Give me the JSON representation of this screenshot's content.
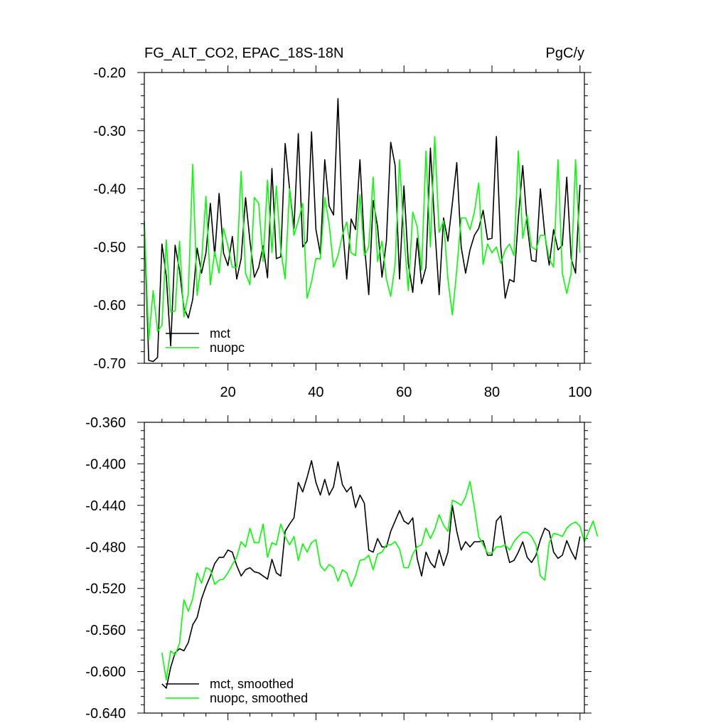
{
  "chart_data": [
    {
      "type": "line",
      "title": "FG_ALT_CO2, EPAC_18S-18N",
      "units": "PgC/y",
      "xlim": [
        1,
        101
      ],
      "ylim": [
        -0.7,
        -0.2
      ],
      "xticks": [
        20,
        40,
        60,
        80,
        100
      ],
      "xtick_labels": [
        "20",
        "40",
        "60",
        "80",
        "100"
      ],
      "yticks": [
        -0.7,
        -0.6,
        -0.5,
        -0.4,
        -0.3,
        -0.2
      ],
      "ytick_labels": [
        "-0.70",
        "-0.60",
        "-0.50",
        "-0.40",
        "-0.30",
        "-0.20"
      ],
      "legend_position": "bottom-left",
      "x_start": 1,
      "series": [
        {
          "name": "mct",
          "color": "#000000",
          "values": [
            -0.46,
            -0.695,
            -0.697,
            -0.69,
            -0.495,
            -0.55,
            -0.67,
            -0.497,
            -0.54,
            -0.605,
            -0.622,
            -0.59,
            -0.502,
            -0.545,
            -0.51,
            -0.425,
            -0.515,
            -0.408,
            -0.51,
            -0.532,
            -0.482,
            -0.555,
            -0.52,
            -0.415,
            -0.49,
            -0.552,
            -0.535,
            -0.498,
            -0.553,
            -0.365,
            -0.52,
            -0.517,
            -0.322,
            -0.4,
            -0.468,
            -0.305,
            -0.5,
            -0.49,
            -0.302,
            -0.47,
            -0.512,
            -0.35,
            -0.43,
            -0.445,
            -0.245,
            -0.46,
            -0.555,
            -0.452,
            -0.47,
            -0.35,
            -0.495,
            -0.582,
            -0.42,
            -0.465,
            -0.552,
            -0.49,
            -0.32,
            -0.36,
            -0.555,
            -0.395,
            -0.53,
            -0.578,
            -0.485,
            -0.563,
            -0.535,
            -0.33,
            -0.465,
            -0.582,
            -0.45,
            -0.49,
            -0.425,
            -0.355,
            -0.5,
            -0.545,
            -0.505,
            -0.48,
            -0.468,
            -0.437,
            -0.487,
            -0.485,
            -0.31,
            -0.5,
            -0.588,
            -0.556,
            -0.56,
            -0.45,
            -0.36,
            -0.462,
            -0.523,
            -0.525,
            -0.4,
            -0.478,
            -0.531,
            -0.47,
            -0.505,
            -0.497,
            -0.38,
            -0.52,
            -0.545,
            -0.393
          ]
        },
        {
          "name": "nuopc",
          "color": "#00ff00",
          "values": [
            -0.455,
            -0.66,
            -0.575,
            -0.645,
            -0.635,
            -0.488,
            -0.612,
            -0.61,
            -0.49,
            -0.62,
            -0.58,
            -0.358,
            -0.583,
            -0.525,
            -0.413,
            -0.565,
            -0.508,
            -0.545,
            -0.468,
            -0.498,
            -0.535,
            -0.535,
            -0.37,
            -0.545,
            -0.565,
            -0.415,
            -0.425,
            -0.525,
            -0.385,
            -0.51,
            -0.395,
            -0.505,
            -0.555,
            -0.4,
            -0.48,
            -0.455,
            -0.425,
            -0.588,
            -0.56,
            -0.52,
            -0.52,
            -0.415,
            -0.46,
            -0.535,
            -0.515,
            -0.48,
            -0.457,
            -0.51,
            -0.515,
            -0.41,
            -0.515,
            -0.5,
            -0.38,
            -0.525,
            -0.49,
            -0.555,
            -0.585,
            -0.53,
            -0.35,
            -0.48,
            -0.575,
            -0.44,
            -0.465,
            -0.54,
            -0.335,
            -0.5,
            -0.31,
            -0.475,
            -0.455,
            -0.555,
            -0.617,
            -0.54,
            -0.45,
            -0.45,
            -0.47,
            -0.44,
            -0.39,
            -0.53,
            -0.495,
            -0.51,
            -0.5,
            -0.528,
            -0.505,
            -0.495,
            -0.515,
            -0.335,
            -0.485,
            -0.445,
            -0.5,
            -0.505,
            -0.48,
            -0.48,
            -0.52,
            -0.535,
            -0.35,
            -0.545,
            -0.58,
            -0.545,
            -0.35,
            -0.51
          ]
        }
      ]
    },
    {
      "type": "line",
      "title": "",
      "xlim": [
        1,
        101
      ],
      "ylim": [
        -0.64,
        -0.36
      ],
      "xticks": [
        20,
        40,
        60,
        80,
        100
      ],
      "xtick_labels": [],
      "yticks": [
        -0.64,
        -0.6,
        -0.56,
        -0.52,
        -0.48,
        -0.44,
        -0.4,
        -0.36
      ],
      "ytick_labels": [
        "-0.640",
        "-0.600",
        "-0.560",
        "-0.520",
        "-0.480",
        "-0.440",
        "-0.400",
        "-0.360"
      ],
      "legend_position": "bottom-left",
      "x_start": 5,
      "series": [
        {
          "name": "mct, smoothed",
          "color": "#000000",
          "values": [
            -0.612,
            -0.616,
            -0.596,
            -0.582,
            -0.578,
            -0.58,
            -0.572,
            -0.555,
            -0.548,
            -0.53,
            -0.518,
            -0.508,
            -0.496,
            -0.49,
            -0.49,
            -0.483,
            -0.485,
            -0.498,
            -0.508,
            -0.502,
            -0.5,
            -0.504,
            -0.505,
            -0.508,
            -0.511,
            -0.492,
            -0.505,
            -0.508,
            -0.465,
            -0.458,
            -0.452,
            -0.418,
            -0.427,
            -0.413,
            -0.397,
            -0.418,
            -0.43,
            -0.415,
            -0.43,
            -0.422,
            -0.398,
            -0.42,
            -0.427,
            -0.422,
            -0.442,
            -0.43,
            -0.438,
            -0.483,
            -0.485,
            -0.472,
            -0.48,
            -0.48,
            -0.465,
            -0.455,
            -0.445,
            -0.455,
            -0.458,
            -0.452,
            -0.491,
            -0.508,
            -0.485,
            -0.495,
            -0.5,
            -0.483,
            -0.498,
            -0.485,
            -0.44,
            -0.465,
            -0.483,
            -0.475,
            -0.48,
            -0.475,
            -0.475,
            -0.474,
            -0.488,
            -0.488,
            -0.455,
            -0.45,
            -0.478,
            -0.495,
            -0.493,
            -0.485,
            -0.475,
            -0.49,
            -0.495,
            -0.488,
            -0.473,
            -0.462,
            -0.465,
            -0.485,
            -0.491,
            -0.488,
            -0.474,
            -0.484,
            -0.492,
            -0.47
          ]
        },
        {
          "name": "nuopc, smoothed",
          "color": "#00ff00",
          "values": [
            -0.582,
            -0.608,
            -0.58,
            -0.584,
            -0.573,
            -0.531,
            -0.542,
            -0.53,
            -0.505,
            -0.515,
            -0.5,
            -0.502,
            -0.516,
            -0.512,
            -0.511,
            -0.505,
            -0.497,
            -0.49,
            -0.475,
            -0.48,
            -0.462,
            -0.476,
            -0.476,
            -0.458,
            -0.49,
            -0.476,
            -0.478,
            -0.458,
            -0.47,
            -0.478,
            -0.47,
            -0.493,
            -0.477,
            -0.485,
            -0.476,
            -0.473,
            -0.498,
            -0.503,
            -0.497,
            -0.5,
            -0.513,
            -0.502,
            -0.505,
            -0.518,
            -0.508,
            -0.493,
            -0.492,
            -0.488,
            -0.502,
            -0.487,
            -0.485,
            -0.478,
            -0.478,
            -0.475,
            -0.482,
            -0.5,
            -0.5,
            -0.487,
            -0.48,
            -0.478,
            -0.462,
            -0.472,
            -0.463,
            -0.449,
            -0.459,
            -0.465,
            -0.435,
            -0.437,
            -0.44,
            -0.432,
            -0.417,
            -0.442,
            -0.47,
            -0.478,
            -0.486,
            -0.486,
            -0.48,
            -0.48,
            -0.478,
            -0.483,
            -0.475,
            -0.47,
            -0.466,
            -0.466,
            -0.47,
            -0.478,
            -0.508,
            -0.512,
            -0.476,
            -0.467,
            -0.468,
            -0.47,
            -0.462,
            -0.458,
            -0.456,
            -0.46,
            -0.475,
            -0.465,
            -0.455,
            -0.47
          ]
        }
      ]
    }
  ]
}
